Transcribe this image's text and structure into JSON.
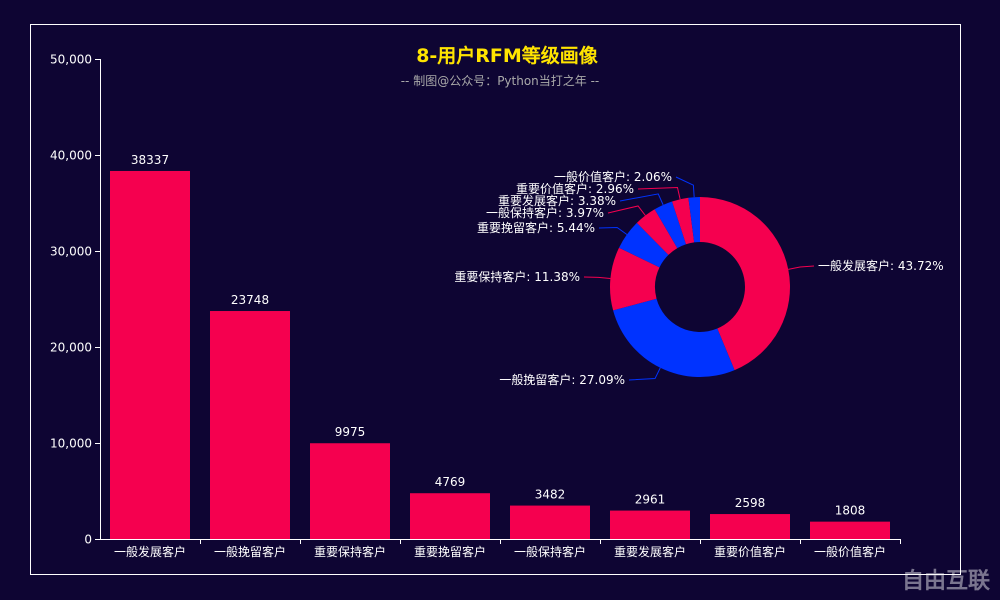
{
  "chart_data": [
    {
      "type": "bar",
      "title": "8-用户RFM等级画像",
      "subtitle": "-- 制图@公众号：Python当打之年 --",
      "categories": [
        "一般发展客户",
        "一般挽留客户",
        "重要保持客户",
        "重要挽留客户",
        "一般保持客户",
        "重要发展客户",
        "重要价值客户",
        "一般价值客户"
      ],
      "values": [
        38337,
        23748,
        9975,
        4769,
        3482,
        2961,
        2598,
        1808
      ],
      "ylim": [
        0,
        50000
      ],
      "yticks": [
        "0",
        "10,000",
        "20,000",
        "30,000",
        "40,000",
        "50,000"
      ],
      "grid": false,
      "color": "#f5004f"
    },
    {
      "type": "pie",
      "donut": true,
      "labels": [
        "一般发展客户",
        "一般挽留客户",
        "重要保持客户",
        "重要挽留客户",
        "一般保持客户",
        "重要发展客户",
        "重要价值客户",
        "一般价值客户"
      ],
      "values": [
        38337,
        23748,
        9975,
        4769,
        3482,
        2961,
        2598,
        1808
      ],
      "percent_labels": [
        "一般发展客户: 43.72%",
        "一般挽留客户: 27.09%",
        "重要保持客户: 11.38%",
        "重要挽留客户: 5.44%",
        "一般保持客户: 3.97%",
        "重要发展客户: 3.38%",
        "重要价值客户: 2.96%",
        "一般价值客户: 2.06%"
      ],
      "colors": [
        "#f5004f",
        "#0033ff"
      ]
    }
  ],
  "watermark": "自由互联"
}
